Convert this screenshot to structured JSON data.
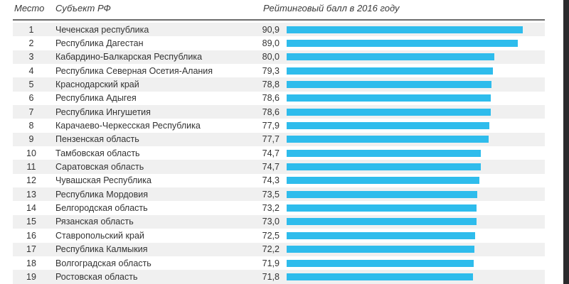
{
  "header": {
    "place": "Место",
    "subject": "Субъект РФ",
    "rating": "Рейтинговый балл в 2016 году"
  },
  "colors": {
    "bar": "#2ebcec",
    "stripe": "#f0f0f0",
    "text": "#333333",
    "header_rule": "#6b6b6b",
    "side_band": "#2b2b2d"
  },
  "rows": [
    {
      "place": "1",
      "subject": "Чеченская республика",
      "value": "90,9"
    },
    {
      "place": "2",
      "subject": "Республика Дагестан",
      "value": "89,0"
    },
    {
      "place": "3",
      "subject": "Кабардино-Балкарская Республика",
      "value": "80,0"
    },
    {
      "place": "4",
      "subject": "Республика Северная Осетия-Алания",
      "value": "79,3"
    },
    {
      "place": "5",
      "subject": "Краснодарский край",
      "value": "78,8"
    },
    {
      "place": "6",
      "subject": "Республика Адыгея",
      "value": "78,6"
    },
    {
      "place": "7",
      "subject": "Республика Ингушетия",
      "value": "78,6"
    },
    {
      "place": "8",
      "subject": "Карачаево-Черкесская Республика",
      "value": "77,9"
    },
    {
      "place": "9",
      "subject": "Пензенская область",
      "value": "77,7"
    },
    {
      "place": "10",
      "subject": "Тамбовская область",
      "value": "74,7"
    },
    {
      "place": "11",
      "subject": "Саратовская область",
      "value": "74,7"
    },
    {
      "place": "12",
      "subject": "Чувашская Республика",
      "value": "74,3"
    },
    {
      "place": "13",
      "subject": "Республика Мордовия",
      "value": "73,5"
    },
    {
      "place": "14",
      "subject": "Белгородская область",
      "value": "73,2"
    },
    {
      "place": "15",
      "subject": "Рязанская область",
      "value": "73,0"
    },
    {
      "place": "16",
      "subject": "Ставропольский край",
      "value": "72,5"
    },
    {
      "place": "17",
      "subject": "Республика Калмыкия",
      "value": "72,2"
    },
    {
      "place": "18",
      "subject": "Волгоградская область",
      "value": "71,9"
    },
    {
      "place": "19",
      "subject": "Ростовская область",
      "value": "71,8"
    }
  ],
  "chart_data": {
    "type": "bar",
    "orientation": "horizontal",
    "title": "Рейтинговый балл в 2016 году",
    "categories": [
      "Чеченская республика",
      "Республика Дагестан",
      "Кабардино-Балкарская Республика",
      "Республика Северная Осетия-Алания",
      "Краснодарский край",
      "Республика Адыгея",
      "Республика Ингушетия",
      "Карачаево-Черкесская Республика",
      "Пензенская область",
      "Тамбовская область",
      "Саратовская область",
      "Чувашская Республика",
      "Республика Мордовия",
      "Белгородская область",
      "Рязанская область",
      "Ставропольский край",
      "Республика Калмыкия",
      "Волгоградская область",
      "Ростовская область"
    ],
    "values": [
      90.9,
      89.0,
      80.0,
      79.3,
      78.8,
      78.6,
      78.6,
      77.9,
      77.7,
      74.7,
      74.7,
      74.3,
      73.5,
      73.2,
      73.0,
      72.5,
      72.2,
      71.9,
      71.8
    ],
    "xlabel": "",
    "ylabel": "",
    "xlim": [
      0,
      100
    ],
    "grid": false,
    "legend": false,
    "bar_color": "#2ebcec"
  }
}
